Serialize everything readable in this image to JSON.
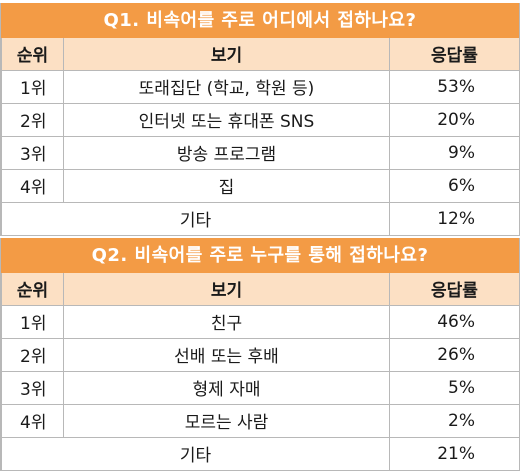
{
  "headers": {
    "rank": "순위",
    "option": "보기",
    "rate": "응답률"
  },
  "surveys": [
    {
      "title": "Q1. 비속어를 주로 어디에서 접하나요?",
      "rows": [
        {
          "rank": "1위",
          "option": "또래집단 (학교, 학원 등)",
          "rate": "53%"
        },
        {
          "rank": "2위",
          "option": "인터넷 또는 휴대폰 SNS",
          "rate": "20%"
        },
        {
          "rank": "3위",
          "option": "방송 프로그램",
          "rate": "9%"
        },
        {
          "rank": "4위",
          "option": "집",
          "rate": "6%"
        }
      ],
      "other": {
        "option": "기타",
        "rate": "12%"
      }
    },
    {
      "title": "Q2. 비속어를 주로 누구를 통해 접하나요?",
      "rows": [
        {
          "rank": "1위",
          "option": "친구",
          "rate": "46%"
        },
        {
          "rank": "2위",
          "option": "선배 또는 후배",
          "rate": "26%"
        },
        {
          "rank": "3위",
          "option": "형제 자매",
          "rate": "5%"
        },
        {
          "rank": "4위",
          "option": "모르는 사람",
          "rate": "2%"
        }
      ],
      "other": {
        "option": "기타",
        "rate": "21%"
      }
    }
  ]
}
